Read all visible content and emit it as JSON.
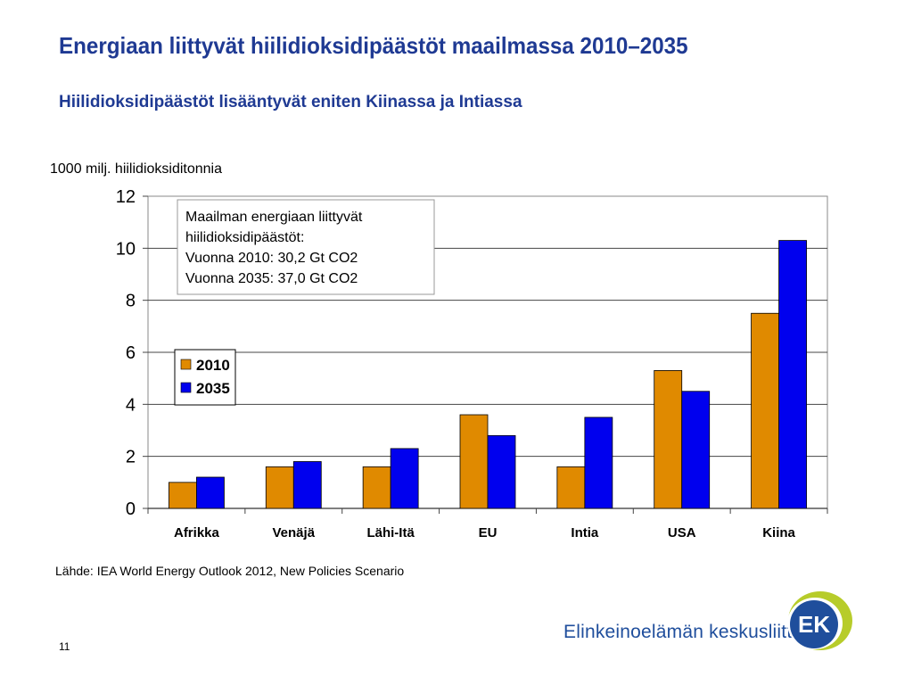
{
  "slide": {
    "title": "Energiaan liittyvät hiilidioksidipäästöt maailmassa 2010–2035",
    "subtitle": "Hiilidioksidipäästöt lisääntyvät eniten Kiinassa ja Intiassa",
    "source": "Lähde: IEA World Energy Outlook 2012, New Policies Scenario",
    "page_number": "11",
    "logo_text": "Elinkeinoelämän keskusliitto",
    "logo_mark": "EK"
  },
  "chart_data": {
    "type": "bar",
    "ylabel": "1000 milj. hiilidioksiditonnia",
    "ylim": [
      0,
      12
    ],
    "yticks": [
      "0",
      "2",
      "4",
      "6",
      "8",
      "10",
      "12"
    ],
    "grid": true,
    "categories": [
      "Afrikka",
      "Venäjä",
      "Lähi-Itä",
      "EU",
      "Intia",
      "USA",
      "Kiina"
    ],
    "series": [
      {
        "name": "2010",
        "color": "#e08a00",
        "values": [
          1.0,
          1.6,
          1.6,
          3.6,
          1.6,
          5.3,
          7.5
        ]
      },
      {
        "name": "2035",
        "color": "#0000ee",
        "values": [
          1.2,
          1.8,
          2.3,
          2.8,
          3.5,
          4.5,
          10.3
        ]
      }
    ],
    "legend_position": "middle-left",
    "annotation": [
      "Maailman energiaan liittyvät",
      "hiilidioksidipäästöt:",
      "Vuonna 2010: 30,2 Gt CO2",
      "Vuonna 2035: 37,0 Gt CO2"
    ]
  },
  "colors": {
    "title": "#1f3a93",
    "logo_green": "#b7cc2a",
    "logo_blue": "#1f4e9c"
  }
}
